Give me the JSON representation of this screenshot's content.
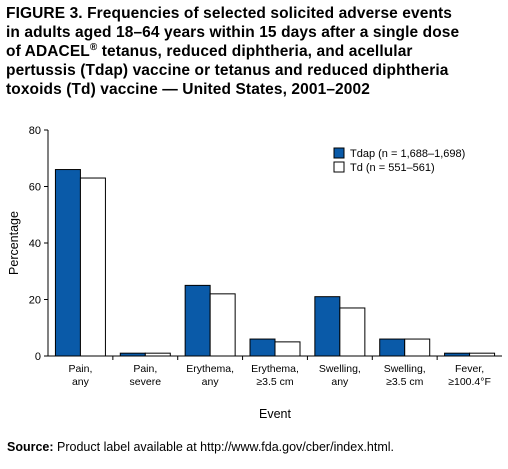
{
  "figure": {
    "title_lines": [
      "FIGURE 3. Frequencies of selected solicited adverse events",
      "in adults aged 18–64 years within 15 days after a single dose",
      "pertussis (Tdap) vaccine or tetanus and reduced diphtheria",
      "toxoids (Td) vaccine — United States, 2001–2002"
    ],
    "title_line3_pre": "of ADACEL",
    "title_line3_sup": "®",
    "title_line3_post": " tetanus, reduced diphtheria, and acellular",
    "source_label": "Source:",
    "source_text": " Product label available at http://www.fda.gov/cber/index.html."
  },
  "chart_data": {
    "type": "bar",
    "title": "",
    "xlabel": "Event",
    "ylabel": "Percentage",
    "ylim": [
      0,
      80
    ],
    "yticks": [
      0,
      20,
      40,
      60,
      80
    ],
    "grid": false,
    "legend_position": "top-right",
    "categories": [
      [
        "Pain,",
        "any"
      ],
      [
        "Pain,",
        "severe"
      ],
      [
        "Erythema,",
        "any"
      ],
      [
        "Erythema,",
        "≥3.5 cm"
      ],
      [
        "Swelling,",
        "any"
      ],
      [
        "Swelling,",
        "≥3.5 cm"
      ],
      [
        "Fever,",
        "≥100.4°F"
      ]
    ],
    "series": [
      {
        "name": "Tdap (n = 1,688–1,698)",
        "color": "#0a5aa8",
        "values": [
          66,
          1,
          25,
          6,
          21,
          6,
          1
        ]
      },
      {
        "name": "Td (n = 551–561)",
        "color": "#ffffff",
        "values": [
          63,
          1,
          22,
          5,
          17,
          6,
          1
        ]
      }
    ]
  }
}
